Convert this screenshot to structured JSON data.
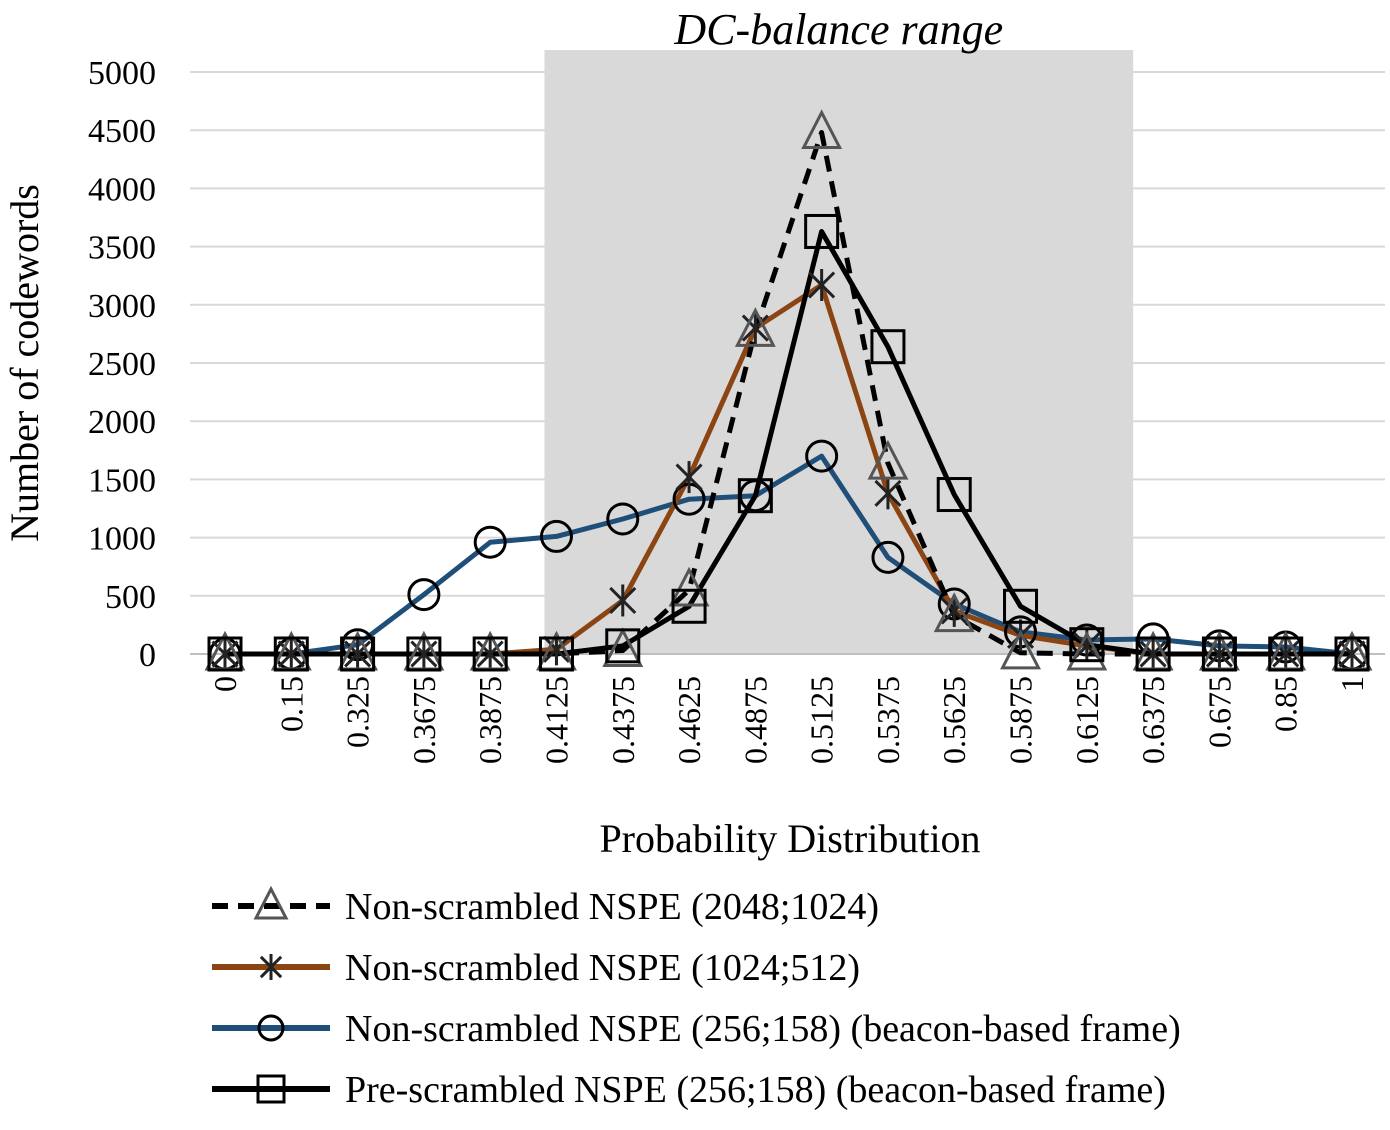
{
  "chart_data": {
    "type": "line",
    "title": "",
    "xlabel": "Probability Distribution",
    "ylabel": "Number of codewords",
    "ylim": [
      0,
      5000
    ],
    "yticks": [
      0,
      500,
      1000,
      1500,
      2000,
      2500,
      3000,
      3500,
      4000,
      4500,
      5000
    ],
    "categories": [
      "0",
      "0.15",
      "0.325",
      "0.3675",
      "0.3875",
      "0.4125",
      "0.4375",
      "0.4625",
      "0.4875",
      "0.5125",
      "0.5375",
      "0.5625",
      "0.5875",
      "0.6125",
      "0.6375",
      "0.675",
      "0.85",
      "1"
    ],
    "grid": true,
    "legend_position": "bottom",
    "annotation": {
      "label": "DC-balance range",
      "from_category": "0.4125",
      "to_category": "0.6375",
      "color": "#d9d9d9"
    },
    "series": [
      {
        "name": "Non-scrambled NSPE (2048;1024)",
        "color": "#000000",
        "line_style": "dashed",
        "marker": "triangle",
        "values": [
          0,
          0,
          0,
          0,
          0,
          0,
          30,
          550,
          2780,
          4480,
          1640,
          330,
          10,
          0,
          0,
          0,
          0,
          0
        ]
      },
      {
        "name": "Non-scrambled NSPE (1024;512)",
        "color": "#8B4513",
        "line_style": "solid",
        "marker": "star",
        "values": [
          0,
          0,
          0,
          0,
          0,
          40,
          460,
          1520,
          2800,
          3170,
          1380,
          370,
          160,
          70,
          0,
          0,
          0,
          0
        ]
      },
      {
        "name": "Non-scrambled NSPE (256;158) (beacon-based frame)",
        "color": "#1F4E79",
        "line_style": "solid",
        "marker": "circle",
        "values": [
          0,
          0,
          80,
          510,
          960,
          1010,
          1160,
          1330,
          1360,
          1700,
          830,
          430,
          190,
          120,
          130,
          70,
          60,
          0
        ]
      },
      {
        "name": "Pre-scrambled NSPE (256;158) (beacon-based frame)",
        "color": "#000000",
        "line_style": "solid",
        "marker": "square",
        "values": [
          0,
          0,
          0,
          0,
          0,
          0,
          70,
          410,
          1360,
          3630,
          2640,
          1370,
          410,
          80,
          0,
          0,
          0,
          0
        ]
      }
    ]
  }
}
